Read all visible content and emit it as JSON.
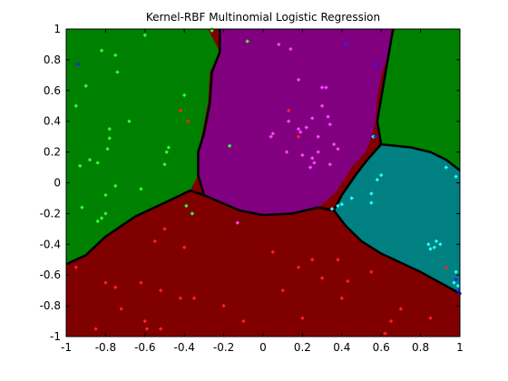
{
  "chart_data": {
    "type": "scatter",
    "title": "Kernel-RBF Multinomial Logistic Regression",
    "xlabel": "",
    "ylabel": "",
    "xlim": [
      -1,
      1
    ],
    "ylim": [
      -1,
      1
    ],
    "grid": false,
    "legend": "none",
    "x_ticks": [
      -1,
      -0.8,
      -0.6,
      -0.4,
      -0.2,
      0,
      0.2,
      0.4,
      0.6,
      0.8,
      1
    ],
    "x_tick_labels": [
      "-1",
      "-0.8",
      "-0.6",
      "-0.4",
      "-0.2",
      "0",
      "0.2",
      "0.4",
      "0.6",
      "0.8",
      "1"
    ],
    "y_ticks": [
      1,
      0.8,
      0.6,
      0.4,
      0.2,
      0,
      -0.2,
      -0.4,
      -0.6,
      -0.8,
      -1
    ],
    "y_tick_labels": [
      "1",
      "0.8",
      "0.6",
      "0.4",
      "0.2",
      "0",
      "-0.2",
      "-0.4",
      "-0.6",
      "-0.8",
      "-1"
    ],
    "regions": [
      {
        "class": "green-left",
        "color": "#008000",
        "polygon": [
          [
            -1,
            1
          ],
          [
            -0.28,
            1
          ],
          [
            -0.22,
            0.85
          ],
          [
            -0.27,
            0.72
          ],
          [
            -0.28,
            0.52
          ],
          [
            -0.31,
            0.32
          ],
          [
            -0.33,
            0.2
          ],
          [
            -0.33,
            0.05
          ],
          [
            -0.37,
            -0.05
          ],
          [
            -0.5,
            -0.13
          ],
          [
            -0.65,
            -0.22
          ],
          [
            -0.8,
            -0.35
          ],
          [
            -0.9,
            -0.47
          ],
          [
            -1,
            -0.53
          ]
        ]
      },
      {
        "class": "purple",
        "color": "#800080",
        "polygon": [
          [
            -0.22,
            1
          ],
          [
            0.66,
            1
          ],
          [
            0.64,
            0.85
          ],
          [
            0.6,
            0.7
          ],
          [
            0.58,
            0.55
          ],
          [
            0.57,
            0.4
          ],
          [
            0.55,
            0.3
          ],
          [
            0.52,
            0.2
          ],
          [
            0.45,
            0.1
          ],
          [
            0.37,
            -0.06
          ],
          [
            0.28,
            -0.16
          ],
          [
            0.22,
            -0.18
          ],
          [
            0.15,
            -0.2
          ],
          [
            0,
            -0.21
          ],
          [
            -0.12,
            -0.18
          ],
          [
            -0.3,
            -0.08
          ],
          [
            -0.33,
            0.05
          ],
          [
            -0.33,
            0.2
          ],
          [
            -0.3,
            0.32
          ],
          [
            -0.27,
            0.52
          ],
          [
            -0.26,
            0.72
          ],
          [
            -0.22,
            0.85
          ]
        ]
      },
      {
        "class": "green-right",
        "color": "#008000",
        "polygon": [
          [
            0.67,
            1
          ],
          [
            1,
            1
          ],
          [
            1,
            0.08
          ],
          [
            0.93,
            0.15
          ],
          [
            0.85,
            0.2
          ],
          [
            0.75,
            0.23
          ],
          [
            0.6,
            0.25
          ],
          [
            0.58,
            0.4
          ],
          [
            0.6,
            0.55
          ],
          [
            0.62,
            0.7
          ],
          [
            0.64,
            0.85
          ]
        ]
      },
      {
        "class": "teal",
        "color": "#008080",
        "polygon": [
          [
            0.6,
            0.25
          ],
          [
            0.75,
            0.23
          ],
          [
            0.85,
            0.2
          ],
          [
            0.93,
            0.15
          ],
          [
            1,
            0.08
          ],
          [
            1,
            -0.72
          ],
          [
            0.9,
            -0.65
          ],
          [
            0.8,
            -0.58
          ],
          [
            0.7,
            -0.52
          ],
          [
            0.6,
            -0.46
          ],
          [
            0.5,
            -0.38
          ],
          [
            0.42,
            -0.28
          ],
          [
            0.36,
            -0.18
          ],
          [
            0.4,
            -0.08
          ],
          [
            0.47,
            0.05
          ],
          [
            0.53,
            0.15
          ]
        ]
      },
      {
        "class": "red",
        "color": "#800000",
        "polygon": [
          [
            -1,
            -1
          ],
          [
            1,
            -1
          ],
          [
            1,
            -0.72
          ],
          [
            0.9,
            -0.65
          ],
          [
            0.8,
            -0.58
          ],
          [
            0.7,
            -0.52
          ],
          [
            0.6,
            -0.46
          ],
          [
            0.5,
            -0.38
          ],
          [
            0.42,
            -0.28
          ],
          [
            0.33,
            -0.2
          ],
          [
            0.28,
            -0.16
          ],
          [
            0.15,
            -0.2
          ],
          [
            0,
            -0.21
          ],
          [
            -0.12,
            -0.18
          ],
          [
            -0.3,
            -0.08
          ],
          [
            -0.37,
            -0.05
          ],
          [
            -0.5,
            -0.13
          ],
          [
            -0.65,
            -0.22
          ],
          [
            -0.8,
            -0.35
          ],
          [
            -0.9,
            -0.47
          ],
          [
            -1,
            -0.53
          ]
        ]
      }
    ],
    "boundaries": [
      {
        "name": "green-purple",
        "points": [
          [
            -0.22,
            1
          ],
          [
            -0.22,
            0.85
          ],
          [
            -0.26,
            0.72
          ],
          [
            -0.27,
            0.52
          ],
          [
            -0.3,
            0.32
          ],
          [
            -0.33,
            0.2
          ],
          [
            -0.33,
            0.05
          ],
          [
            -0.3,
            -0.08
          ],
          [
            -0.12,
            -0.18
          ],
          [
            0,
            -0.21
          ],
          [
            0.15,
            -0.2
          ],
          [
            0.28,
            -0.16
          ],
          [
            0.36,
            -0.18
          ]
        ]
      },
      {
        "name": "purple-greenright",
        "points": [
          [
            0.66,
            1
          ],
          [
            0.64,
            0.85
          ],
          [
            0.62,
            0.7
          ],
          [
            0.6,
            0.55
          ],
          [
            0.58,
            0.4
          ],
          [
            0.6,
            0.25
          ],
          [
            0.75,
            0.23
          ],
          [
            0.85,
            0.2
          ],
          [
            0.93,
            0.15
          ],
          [
            1,
            0.08
          ]
        ]
      },
      {
        "name": "teal-purple",
        "points": [
          [
            0.6,
            0.25
          ],
          [
            0.53,
            0.15
          ],
          [
            0.47,
            0.05
          ],
          [
            0.4,
            -0.08
          ],
          [
            0.36,
            -0.18
          ]
        ]
      },
      {
        "name": "teal-red",
        "points": [
          [
            0.28,
            -0.16
          ],
          [
            0.36,
            -0.18
          ],
          [
            0.42,
            -0.28
          ],
          [
            0.5,
            -0.38
          ],
          [
            0.6,
            -0.46
          ],
          [
            0.7,
            -0.52
          ],
          [
            0.8,
            -0.58
          ],
          [
            0.9,
            -0.65
          ],
          [
            1,
            -0.72
          ]
        ]
      },
      {
        "name": "red-green",
        "points": [
          [
            -1,
            -0.53
          ],
          [
            -0.9,
            -0.47
          ],
          [
            -0.8,
            -0.35
          ],
          [
            -0.65,
            -0.22
          ],
          [
            -0.5,
            -0.13
          ],
          [
            -0.37,
            -0.05
          ],
          [
            -0.3,
            -0.08
          ]
        ]
      }
    ],
    "series": [
      {
        "color": "#33ff33",
        "points": [
          [
            -0.82,
            0.86
          ],
          [
            -0.9,
            0.63
          ],
          [
            -0.75,
            0.83
          ],
          [
            -0.6,
            0.96
          ],
          [
            -0.95,
            0.5
          ],
          [
            -0.74,
            0.72
          ],
          [
            -0.68,
            0.4
          ],
          [
            -0.78,
            0.29
          ],
          [
            -0.88,
            0.15
          ],
          [
            -0.84,
            0.13
          ],
          [
            -0.93,
            0.11
          ],
          [
            -0.79,
            0.22
          ],
          [
            -0.48,
            0.23
          ],
          [
            -0.49,
            0.2
          ],
          [
            -0.5,
            0.12
          ],
          [
            -0.62,
            -0.04
          ],
          [
            -0.8,
            -0.08
          ],
          [
            -0.92,
            -0.16
          ],
          [
            -0.82,
            -0.23
          ],
          [
            -0.84,
            -0.25
          ],
          [
            -0.75,
            -0.02
          ],
          [
            -0.8,
            -0.2
          ],
          [
            -0.26,
            1
          ],
          [
            -0.26,
            0.99
          ],
          [
            -0.08,
            0.92
          ],
          [
            -0.17,
            0.24
          ],
          [
            -0.36,
            -0.2
          ],
          [
            -0.39,
            -0.15
          ],
          [
            -0.4,
            0.57
          ],
          [
            -0.78,
            0.35
          ]
        ]
      },
      {
        "color": "#ff2222",
        "points": [
          [
            -0.42,
            0.47
          ],
          [
            -0.38,
            0.4
          ],
          [
            -0.5,
            -0.3
          ],
          [
            -0.55,
            -0.38
          ],
          [
            -0.4,
            -0.42
          ],
          [
            -0.95,
            -0.55
          ],
          [
            -0.8,
            -0.65
          ],
          [
            -0.75,
            -0.68
          ],
          [
            -0.62,
            -0.65
          ],
          [
            -0.52,
            -0.7
          ],
          [
            -0.72,
            -0.82
          ],
          [
            -0.85,
            -0.95
          ],
          [
            -0.6,
            -0.9
          ],
          [
            -0.59,
            -0.95
          ],
          [
            -0.52,
            -0.95
          ],
          [
            -0.42,
            -0.75
          ],
          [
            -0.35,
            -0.75
          ],
          [
            -0.2,
            -0.8
          ],
          [
            -0.1,
            -0.9
          ],
          [
            0.05,
            -0.45
          ],
          [
            0.18,
            -0.55
          ],
          [
            0.25,
            -0.5
          ],
          [
            0.1,
            -0.7
          ],
          [
            0.2,
            -0.88
          ],
          [
            0.38,
            -0.5
          ],
          [
            0.43,
            -0.64
          ],
          [
            0.55,
            -0.58
          ],
          [
            0.65,
            -0.9
          ],
          [
            0.62,
            -0.98
          ],
          [
            0.7,
            -0.82
          ],
          [
            0.85,
            -0.88
          ],
          [
            0.93,
            -0.55
          ],
          [
            0.18,
            0.3
          ],
          [
            0.13,
            0.47
          ],
          [
            0.4,
            -0.75
          ],
          [
            0.3,
            -0.62
          ]
        ]
      },
      {
        "color": "#ff44ff",
        "points": [
          [
            0.08,
            0.9
          ],
          [
            0.14,
            0.87
          ],
          [
            0.18,
            0.67
          ],
          [
            0.3,
            0.62
          ],
          [
            0.32,
            0.62
          ],
          [
            0.3,
            0.5
          ],
          [
            0.25,
            0.42
          ],
          [
            0.33,
            0.43
          ],
          [
            0.34,
            0.38
          ],
          [
            0.22,
            0.36
          ],
          [
            0.19,
            0.33
          ],
          [
            0.13,
            0.4
          ],
          [
            0.05,
            0.32
          ],
          [
            0.04,
            0.3
          ],
          [
            0.12,
            0.2
          ],
          [
            0.2,
            0.18
          ],
          [
            0.25,
            0.16
          ],
          [
            0.26,
            0.13
          ],
          [
            0.28,
            0.2
          ],
          [
            0.36,
            0.25
          ],
          [
            0.38,
            0.22
          ],
          [
            0.34,
            0.12
          ],
          [
            0.24,
            0.1
          ],
          [
            -0.13,
            -0.26
          ],
          [
            0.18,
            0.35
          ],
          [
            0.28,
            0.3
          ]
        ]
      },
      {
        "color": "#22ffff",
        "points": [
          [
            0.56,
            0.3
          ],
          [
            0.93,
            0.1
          ],
          [
            0.98,
            0.04
          ],
          [
            0.58,
            0.02
          ],
          [
            0.55,
            -0.07
          ],
          [
            0.55,
            -0.13
          ],
          [
            0.4,
            -0.14
          ],
          [
            0.38,
            -0.15
          ],
          [
            0.35,
            -0.17
          ],
          [
            0.88,
            -0.38
          ],
          [
            0.87,
            -0.42
          ],
          [
            0.9,
            -0.4
          ],
          [
            0.84,
            -0.4
          ],
          [
            0.85,
            -0.43
          ],
          [
            0.98,
            -0.58
          ],
          [
            0.97,
            -0.65
          ],
          [
            0.99,
            -0.67
          ],
          [
            0.45,
            -0.1
          ],
          [
            0.6,
            0.05
          ]
        ]
      },
      {
        "color": "#2222ff",
        "points": [
          [
            -0.94,
            0.77
          ],
          [
            0.42,
            0.9
          ],
          [
            0.57,
            0.77
          ],
          [
            0.98,
            -0.63
          ],
          [
            0.99,
            -0.7
          ],
          [
            1,
            -0.72
          ],
          [
            0.57,
            0.3
          ]
        ]
      }
    ]
  }
}
